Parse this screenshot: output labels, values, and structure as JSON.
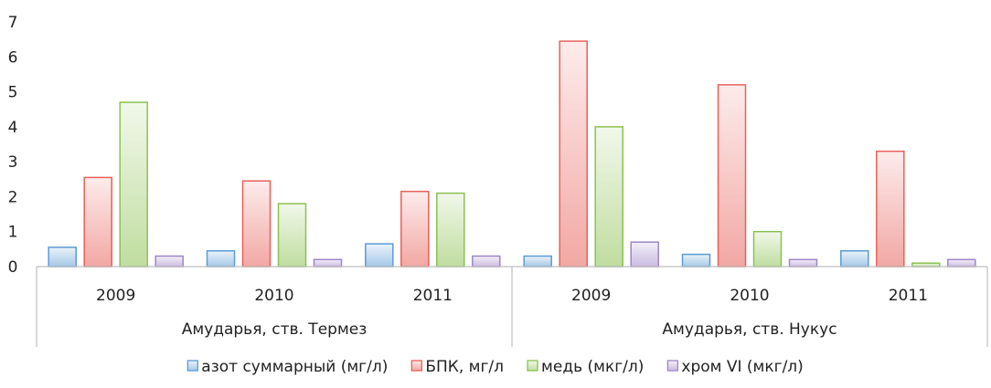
{
  "chart_data": {
    "type": "bar",
    "title": "",
    "xlabel": "",
    "ylabel": "",
    "ylim": [
      0,
      7
    ],
    "yticks": [
      0,
      1,
      2,
      3,
      4,
      5,
      6,
      7
    ],
    "grid": false,
    "legend_position": "bottom",
    "groups": [
      {
        "label": "Амударья, ств. Термез",
        "categories": [
          "2009",
          "2010",
          "2011"
        ]
      },
      {
        "label": "Амударья, ств. Нукус",
        "categories": [
          "2009",
          "2010",
          "2011"
        ]
      }
    ],
    "series": [
      {
        "name": "азот суммарный (мг/л)",
        "color": "#5b9bd5",
        "values": [
          0.55,
          0.45,
          0.65,
          0.3,
          0.35,
          0.45
        ]
      },
      {
        "name": "БПК, мг/л",
        "color": "#e8615a",
        "values": [
          2.55,
          2.45,
          2.15,
          6.45,
          5.2,
          3.3
        ]
      },
      {
        "name": "медь (мкг/л)",
        "color": "#8cc152",
        "values": [
          4.7,
          1.8,
          2.1,
          4.0,
          1.0,
          0.1
        ]
      },
      {
        "name": "хром VI (мкг/л)",
        "color": "#9e86c8",
        "values": [
          0.3,
          0.2,
          0.3,
          0.7,
          0.2,
          0.2
        ]
      }
    ]
  }
}
